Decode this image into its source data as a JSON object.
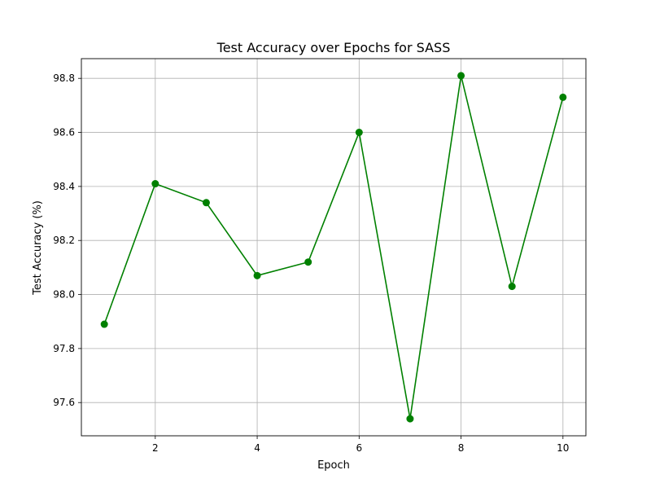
{
  "chart_data": {
    "type": "line",
    "title": "Test Accuracy over Epochs for SASS",
    "xlabel": "Epoch",
    "ylabel": "Test Accuracy (%)",
    "x": [
      1,
      2,
      3,
      4,
      5,
      6,
      7,
      8,
      9,
      10
    ],
    "series": [
      {
        "values": [
          97.89,
          98.41,
          98.34,
          98.07,
          98.12,
          98.6,
          97.54,
          98.81,
          98.03,
          98.73
        ],
        "color": "#008000",
        "marker": "circle"
      }
    ],
    "xlim": [
      0.55,
      10.45
    ],
    "ylim": [
      97.477,
      98.873
    ],
    "xticks": [
      2,
      4,
      6,
      8,
      10
    ],
    "xtick_labels": [
      "2",
      "4",
      "6",
      "8",
      "10"
    ],
    "yticks": [
      97.6,
      97.8,
      98.0,
      98.2,
      98.4,
      98.6,
      98.8
    ],
    "ytick_labels": [
      "97.6",
      "97.8",
      "98.0",
      "98.2",
      "98.4",
      "98.6",
      "98.8"
    ],
    "grid": true,
    "legend": "none"
  }
}
